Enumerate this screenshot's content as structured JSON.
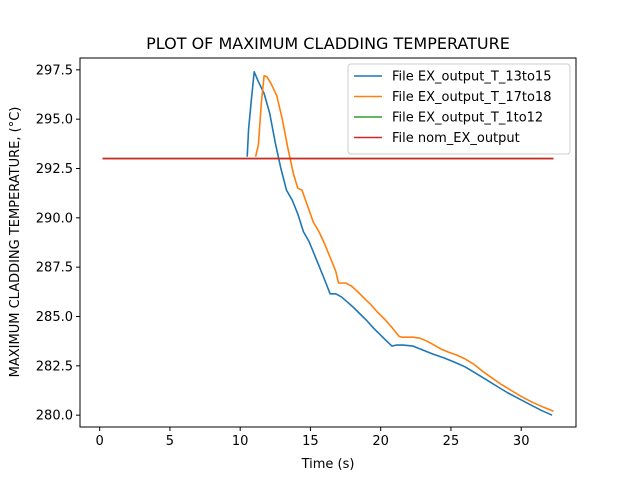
{
  "chart_data": {
    "type": "line",
    "title": "PLOT OF MAXIMUM CLADDING TEMPERATURE",
    "xlabel": "Time (s)",
    "ylabel": "MAXIMUM CLADDING TEMPERATURE, (°C)",
    "xlim": [
      -1.4,
      33.9
    ],
    "ylim": [
      279.4,
      298.1
    ],
    "xticks": [
      0,
      5,
      10,
      15,
      20,
      25,
      30
    ],
    "yticks": [
      280.0,
      282.5,
      285.0,
      287.5,
      290.0,
      292.5,
      295.0,
      297.5
    ],
    "xtick_labels": [
      "0",
      "5",
      "10",
      "15",
      "20",
      "25",
      "30"
    ],
    "ytick_labels": [
      "280.0",
      "282.5",
      "285.0",
      "287.5",
      "290.0",
      "292.5",
      "295.0",
      "297.5"
    ],
    "grid": false,
    "legend_position": "top-right",
    "series": [
      {
        "name": "File EX_output_T_13to15",
        "color": "#1f77b4",
        "points": [
          [
            10.5,
            293.1
          ],
          [
            10.6,
            294.5
          ],
          [
            10.8,
            296.0
          ],
          [
            11.0,
            297.4
          ],
          [
            11.3,
            296.9
          ],
          [
            11.7,
            296.3
          ],
          [
            12.1,
            295.3
          ],
          [
            12.5,
            293.8
          ],
          [
            12.9,
            292.5
          ],
          [
            13.3,
            291.4
          ],
          [
            13.7,
            290.9
          ],
          [
            14.1,
            290.2
          ],
          [
            14.5,
            289.3
          ],
          [
            14.9,
            288.8
          ],
          [
            15.3,
            288.1
          ],
          [
            15.7,
            287.4
          ],
          [
            16.1,
            286.7
          ],
          [
            16.4,
            286.15
          ],
          [
            16.8,
            286.15
          ],
          [
            17.2,
            286.0
          ],
          [
            17.6,
            285.75
          ],
          [
            18.0,
            285.5
          ],
          [
            18.5,
            285.15
          ],
          [
            19.0,
            284.8
          ],
          [
            19.5,
            284.4
          ],
          [
            20.0,
            284.05
          ],
          [
            20.5,
            283.7
          ],
          [
            20.8,
            283.5
          ],
          [
            21.1,
            283.55
          ],
          [
            21.6,
            283.55
          ],
          [
            22.3,
            283.5
          ],
          [
            23.0,
            283.3
          ],
          [
            23.7,
            283.1
          ],
          [
            24.5,
            282.9
          ],
          [
            25.2,
            282.7
          ],
          [
            26.0,
            282.45
          ],
          [
            26.7,
            282.15
          ],
          [
            27.5,
            281.8
          ],
          [
            28.3,
            281.45
          ],
          [
            29.0,
            281.15
          ],
          [
            29.8,
            280.85
          ],
          [
            30.6,
            280.55
          ],
          [
            31.4,
            280.25
          ],
          [
            32.2,
            280.0
          ]
        ]
      },
      {
        "name": "File EX_output_T_17to18",
        "color": "#ff7f0e",
        "points": [
          [
            11.1,
            293.1
          ],
          [
            11.3,
            293.7
          ],
          [
            11.5,
            295.8
          ],
          [
            11.7,
            297.2
          ],
          [
            11.9,
            297.15
          ],
          [
            12.2,
            296.8
          ],
          [
            12.6,
            296.2
          ],
          [
            13.0,
            295.0
          ],
          [
            13.4,
            293.5
          ],
          [
            13.8,
            292.2
          ],
          [
            14.1,
            291.5
          ],
          [
            14.4,
            291.4
          ],
          [
            14.8,
            290.6
          ],
          [
            15.2,
            289.8
          ],
          [
            15.6,
            289.3
          ],
          [
            16.0,
            288.7
          ],
          [
            16.4,
            288.0
          ],
          [
            16.8,
            287.3
          ],
          [
            17.0,
            286.7
          ],
          [
            17.5,
            286.7
          ],
          [
            17.9,
            286.55
          ],
          [
            18.3,
            286.3
          ],
          [
            18.8,
            285.95
          ],
          [
            19.3,
            285.6
          ],
          [
            19.8,
            285.2
          ],
          [
            20.3,
            284.85
          ],
          [
            20.8,
            284.45
          ],
          [
            21.3,
            284.0
          ],
          [
            21.5,
            283.95
          ],
          [
            22.3,
            283.95
          ],
          [
            22.8,
            283.9
          ],
          [
            23.3,
            283.75
          ],
          [
            23.8,
            283.55
          ],
          [
            24.3,
            283.35
          ],
          [
            24.8,
            283.2
          ],
          [
            25.4,
            283.05
          ],
          [
            26.0,
            282.85
          ],
          [
            26.6,
            282.6
          ],
          [
            27.2,
            282.25
          ],
          [
            27.9,
            281.9
          ],
          [
            28.6,
            281.55
          ],
          [
            29.3,
            281.25
          ],
          [
            30.0,
            280.95
          ],
          [
            30.8,
            280.65
          ],
          [
            31.6,
            280.4
          ],
          [
            32.3,
            280.2
          ]
        ]
      },
      {
        "name": "File EX_output_T_1to12",
        "color": "#2ca02c",
        "points": [
          [
            0.2,
            293.0
          ],
          [
            32.3,
            293.0
          ]
        ]
      },
      {
        "name": "File nom_EX_output",
        "color": "#d62728",
        "points": [
          [
            0.2,
            293.0
          ],
          [
            32.3,
            293.0
          ]
        ]
      }
    ]
  }
}
